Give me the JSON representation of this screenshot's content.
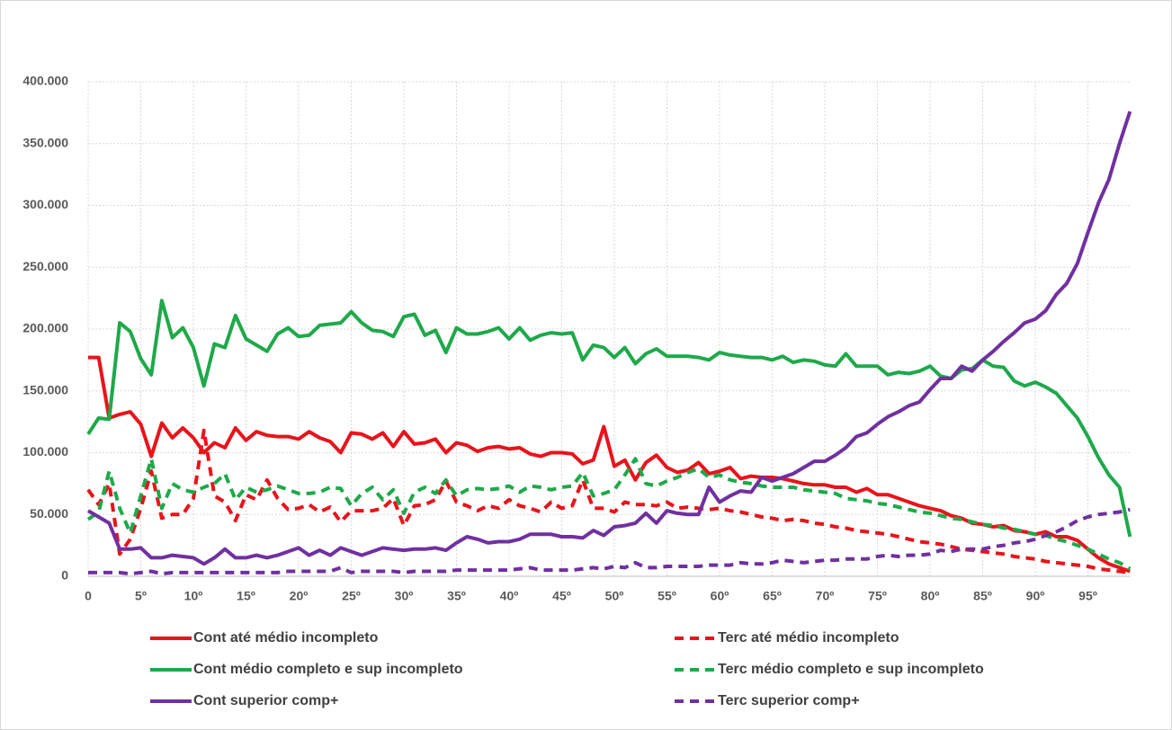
{
  "chart_data": {
    "type": "line",
    "categories": [
      "0",
      null,
      null,
      null,
      null,
      "5º",
      null,
      null,
      null,
      null,
      "10º",
      null,
      null,
      null,
      null,
      "15º",
      null,
      null,
      null,
      null,
      "20º",
      null,
      null,
      null,
      null,
      "25º",
      null,
      null,
      null,
      null,
      "30º",
      null,
      null,
      null,
      null,
      "35º",
      null,
      null,
      null,
      null,
      "40º",
      null,
      null,
      null,
      null,
      "45º",
      null,
      null,
      null,
      null,
      "50º",
      null,
      null,
      null,
      null,
      "55º",
      null,
      null,
      null,
      null,
      "60º",
      null,
      null,
      null,
      null,
      "65º",
      null,
      null,
      null,
      null,
      "70º",
      null,
      null,
      null,
      null,
      "75º",
      null,
      null,
      null,
      null,
      "80º",
      null,
      null,
      null,
      null,
      "85º",
      null,
      null,
      null,
      null,
      "90º",
      null,
      null,
      null,
      null,
      "95º",
      null,
      null,
      null,
      null
    ],
    "ylim": [
      0,
      400000
    ],
    "yticks": [
      0,
      {
        "value": 50000,
        "label": "50.000"
      },
      {
        "value": 100000,
        "label": "100.000"
      },
      {
        "value": 150000,
        "label": "150.000"
      },
      {
        "value": 200000,
        "label": "200.000"
      },
      {
        "value": 250000,
        "label": "250.000"
      },
      {
        "value": 300000,
        "label": "300.000"
      },
      {
        "value": 350000,
        "label": "350.000"
      },
      {
        "value": 400000,
        "label": "400.000"
      }
    ],
    "grid": true,
    "series": [
      {
        "name": "Cont até médio incompleto",
        "color": "#e8141b",
        "dashed": false,
        "values": [
          177000,
          177000,
          128000,
          131000,
          133000,
          123000,
          97000,
          124000,
          112000,
          120000,
          112000,
          100000,
          108000,
          104000,
          120000,
          110000,
          117000,
          114000,
          113000,
          113000,
          111000,
          117000,
          112000,
          109000,
          100000,
          116000,
          115000,
          111000,
          116000,
          105000,
          117000,
          107000,
          108000,
          111000,
          100000,
          108000,
          106000,
          101000,
          104000,
          105000,
          103000,
          104000,
          99000,
          97000,
          100000,
          100000,
          99000,
          91000,
          94000,
          121000,
          89000,
          94000,
          78000,
          92000,
          98000,
          88000,
          84000,
          86000,
          92000,
          83000,
          85000,
          88000,
          79000,
          81000,
          80000,
          80000,
          79000,
          77000,
          75000,
          74000,
          74000,
          72000,
          72000,
          68000,
          71000,
          66000,
          66000,
          63000,
          60000,
          57000,
          55000,
          53000,
          49000,
          47000,
          43000,
          42000,
          40000,
          41000,
          37000,
          36000,
          34000,
          36000,
          32000,
          32000,
          29000,
          22000,
          15000,
          10000,
          7000,
          4000
        ]
      },
      {
        "name": "Terc até médio incompleto",
        "color": "#e8141b",
        "dashed": true,
        "values": [
          70000,
          58000,
          75000,
          18000,
          30000,
          55000,
          85000,
          47000,
          50000,
          50000,
          63000,
          118000,
          65000,
          60000,
          45000,
          66000,
          62000,
          78000,
          63000,
          54000,
          55000,
          58000,
          52000,
          56000,
          44000,
          53000,
          53000,
          53000,
          55000,
          63000,
          41000,
          57000,
          58000,
          62000,
          77000,
          60000,
          57000,
          53000,
          57000,
          55000,
          62000,
          57000,
          55000,
          52000,
          60000,
          55000,
          57000,
          78000,
          55000,
          55000,
          52000,
          60000,
          58000,
          58000,
          57000,
          60000,
          55000,
          56000,
          55000,
          54000,
          55000,
          53000,
          52000,
          50000,
          48000,
          47000,
          45000,
          46000,
          45000,
          43000,
          42000,
          40000,
          39000,
          37000,
          36000,
          35000,
          34000,
          32000,
          30000,
          28000,
          27000,
          26000,
          24000,
          22000,
          21000,
          20000,
          19000,
          18000,
          16000,
          15000,
          14000,
          12000,
          11000,
          10000,
          9000,
          8000,
          6000,
          5000,
          4000,
          3000
        ]
      },
      {
        "name": "Cont médio completo e sup incompleto",
        "color": "#1ea94a",
        "dashed": false,
        "values": [
          115000,
          128000,
          127000,
          205000,
          198000,
          176000,
          163000,
          223000,
          193000,
          201000,
          185000,
          154000,
          188000,
          185000,
          211000,
          192000,
          187000,
          182000,
          196000,
          201000,
          194000,
          195000,
          203000,
          204000,
          205000,
          214000,
          205000,
          199000,
          198000,
          194000,
          210000,
          212000,
          195000,
          199000,
          181000,
          201000,
          196000,
          196000,
          198000,
          201000,
          192000,
          201000,
          191000,
          195000,
          197000,
          196000,
          197000,
          175000,
          187000,
          185000,
          177000,
          185000,
          172000,
          180000,
          184000,
          178000,
          178000,
          178000,
          177000,
          175000,
          181000,
          179000,
          178000,
          177000,
          177000,
          175000,
          178000,
          173000,
          175000,
          174000,
          171000,
          170000,
          180000,
          170000,
          170000,
          170000,
          163000,
          165000,
          164000,
          166000,
          170000,
          162000,
          160000,
          167000,
          168000,
          175000,
          170000,
          169000,
          158000,
          154000,
          157000,
          153000,
          148000,
          138000,
          128000,
          113000,
          96000,
          82000,
          72000,
          32000
        ]
      },
      {
        "name": "Terc médio completo e sup incompleto",
        "color": "#1ea94a",
        "dashed": true,
        "values": [
          46000,
          52000,
          85000,
          55000,
          35000,
          65000,
          95000,
          55000,
          75000,
          70000,
          68000,
          72000,
          75000,
          83000,
          62000,
          72000,
          68000,
          70000,
          73000,
          70000,
          67000,
          67000,
          68000,
          72000,
          71000,
          57000,
          67000,
          72000,
          62000,
          70000,
          51000,
          68000,
          72000,
          67000,
          78000,
          65000,
          70000,
          71000,
          70000,
          71000,
          73000,
          68000,
          73000,
          72000,
          70000,
          72000,
          73000,
          84000,
          65000,
          67000,
          70000,
          82000,
          95000,
          75000,
          73000,
          77000,
          80000,
          84000,
          87000,
          80000,
          82000,
          78000,
          76000,
          75000,
          73000,
          72000,
          72000,
          72000,
          70000,
          69000,
          68000,
          67000,
          63000,
          62000,
          61000,
          59000,
          58000,
          56000,
          54000,
          52000,
          51000,
          49000,
          47000,
          46000,
          44000,
          42000,
          41000,
          39000,
          38000,
          36000,
          34000,
          33000,
          30000,
          28000,
          25000,
          22000,
          18000,
          14000,
          11000,
          6000
        ]
      },
      {
        "name": "Cont superior comp+",
        "color": "#7030a0",
        "dashed": false,
        "values": [
          53000,
          48000,
          43000,
          22000,
          22000,
          23000,
          15000,
          15000,
          17000,
          16000,
          15000,
          10000,
          15000,
          22000,
          15000,
          15000,
          17000,
          15000,
          17000,
          20000,
          23000,
          17000,
          21000,
          17000,
          23000,
          20000,
          17000,
          20000,
          23000,
          22000,
          21000,
          22000,
          22000,
          23000,
          21000,
          27000,
          32000,
          30000,
          27000,
          28000,
          28000,
          30000,
          34000,
          34000,
          34000,
          32000,
          32000,
          31000,
          37000,
          33000,
          40000,
          41000,
          43000,
          51000,
          43000,
          53000,
          51000,
          50000,
          50000,
          72000,
          60000,
          65000,
          69000,
          68000,
          80000,
          77000,
          80000,
          83000,
          88000,
          93000,
          93000,
          98000,
          104000,
          113000,
          116000,
          123000,
          129000,
          133000,
          138000,
          141000,
          151000,
          160000,
          160000,
          170000,
          166000,
          175000,
          182000,
          190000,
          197000,
          205000,
          208000,
          215000,
          228000,
          237000,
          253000,
          278000,
          302000,
          321000,
          350000,
          376000
        ]
      },
      {
        "name": "Terc superior comp+",
        "color": "#7030a0",
        "dashed": true,
        "values": [
          3000,
          3000,
          3000,
          3000,
          2000,
          3000,
          4000,
          2000,
          3000,
          3000,
          3000,
          3000,
          3000,
          3000,
          3000,
          3000,
          3000,
          3000,
          3000,
          4000,
          4000,
          4000,
          4000,
          4000,
          7000,
          3000,
          4000,
          4000,
          4000,
          4000,
          3000,
          4000,
          4000,
          4000,
          4000,
          5000,
          5000,
          5000,
          5000,
          5000,
          5000,
          6000,
          7000,
          5000,
          5000,
          5000,
          5000,
          6000,
          7000,
          6000,
          8000,
          7000,
          11000,
          7000,
          7000,
          8000,
          8000,
          8000,
          8000,
          9000,
          9000,
          9000,
          11000,
          10000,
          10000,
          11000,
          13000,
          12000,
          11000,
          12000,
          13000,
          13000,
          14000,
          14000,
          14000,
          16000,
          17000,
          16000,
          17000,
          17000,
          18000,
          21000,
          20000,
          22000,
          22000,
          22000,
          24000,
          25000,
          27000,
          28000,
          30000,
          33000,
          36000,
          40000,
          45000,
          48000,
          50000,
          51000,
          52000,
          54000
        ]
      }
    ]
  }
}
